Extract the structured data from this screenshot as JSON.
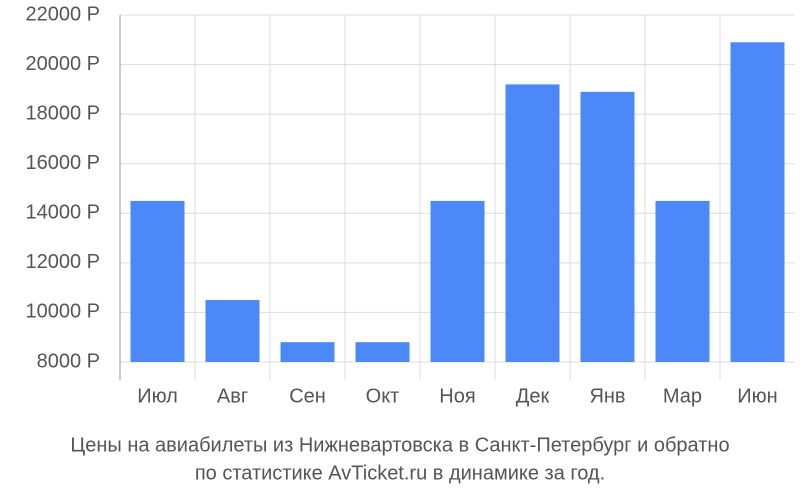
{
  "chart_data": {
    "type": "bar",
    "title": [
      "Цены на авиабилеты из Нижневартовска в Санкт-Петербург и обратно",
      "по статистике AvTicket.ru в динамике за год."
    ],
    "categories": [
      "Июл",
      "Авг",
      "Сен",
      "Окт",
      "Ноя",
      "Дек",
      "Янв",
      "Мар",
      "Июн"
    ],
    "values": [
      14500,
      10500,
      8800,
      8800,
      14500,
      19200,
      18900,
      14500,
      20900
    ],
    "color": "#4d88f9",
    "ylim": [
      8000,
      22000
    ],
    "yticks": [
      {
        "value": 8000,
        "label": "8000 Р"
      },
      {
        "value": 10000,
        "label": "10000 Р"
      },
      {
        "value": 12000,
        "label": "12000 Р"
      },
      {
        "value": 14000,
        "label": "14000 Р"
      },
      {
        "value": 16000,
        "label": "16000 Р"
      },
      {
        "value": 18000,
        "label": "18000 Р"
      },
      {
        "value": 20000,
        "label": "20000 Р"
      },
      {
        "value": 22000,
        "label": "22000 Р"
      }
    ],
    "grid": true
  }
}
